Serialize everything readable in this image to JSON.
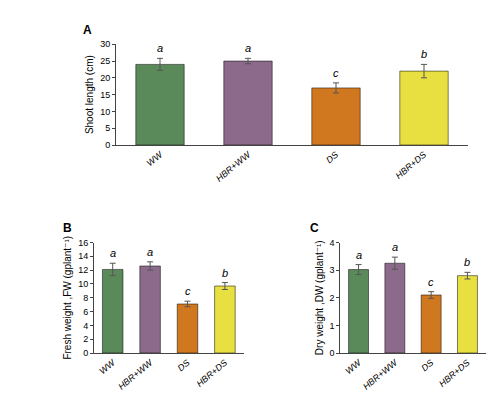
{
  "chart_data": [
    {
      "type": "bar",
      "title": "A",
      "categories": [
        "WW",
        "HBR+WW",
        "DS",
        "HBR+DS"
      ],
      "values": [
        24.0,
        25.0,
        17.0,
        22.0
      ],
      "errors": [
        1.8,
        0.8,
        1.5,
        2.0
      ],
      "annotations": [
        "a",
        "a",
        "c",
        "b"
      ],
      "colors": [
        "#5a8a5a",
        "#8b6a8b",
        "#d07820",
        "#e8e040"
      ],
      "ylabel": "Shoot length (cm)",
      "ylim": [
        0,
        30
      ],
      "yticks": [
        0,
        5,
        10,
        15,
        20,
        25,
        30
      ],
      "grid": false
    },
    {
      "type": "bar",
      "title": "B",
      "categories": [
        "WW",
        "HBR+WW",
        "DS",
        "HBR+DS"
      ],
      "values": [
        12.1,
        12.6,
        7.1,
        9.7
      ],
      "errors": [
        0.9,
        0.6,
        0.4,
        0.5
      ],
      "annotations": [
        "a",
        "a",
        "c",
        "b"
      ],
      "colors": [
        "#5a8a5a",
        "#8b6a8b",
        "#d07820",
        "#e8e040"
      ],
      "ylabel": "Fresh weight ,FW (gplant⁻¹)",
      "ylim": [
        0,
        16
      ],
      "yticks": [
        0,
        2,
        4,
        6,
        8,
        10,
        12,
        14,
        16
      ],
      "grid": false
    },
    {
      "type": "bar",
      "title": "C",
      "categories": [
        "WW",
        "HBR+WW",
        "DS",
        "HBR+DS"
      ],
      "values": [
        3.02,
        3.25,
        2.1,
        2.8
      ],
      "errors": [
        0.18,
        0.22,
        0.12,
        0.12
      ],
      "annotations": [
        "a",
        "a",
        "c",
        "b"
      ],
      "colors": [
        "#5a8a5a",
        "#8b6a8b",
        "#d07820",
        "#e8e040"
      ],
      "ylabel": "Dry weight ,DW (gplant⁻¹)",
      "ylim": [
        0,
        4
      ],
      "yticks": [
        0,
        1,
        2,
        3,
        4
      ],
      "grid": false
    }
  ]
}
